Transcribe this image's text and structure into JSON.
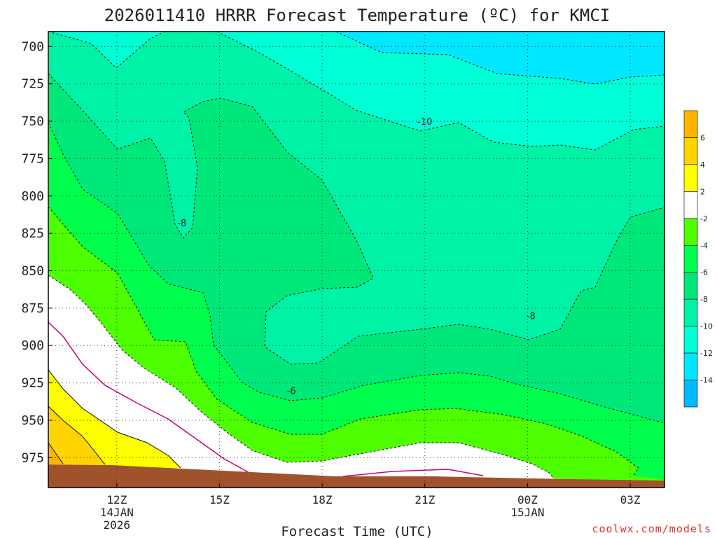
{
  "chart_data": {
    "type": "contour",
    "title": "2026011410 HRRR Forecast Temperature (ºC) for KMCI",
    "xlabel": "Forecast Time (UTC)",
    "ylabel": "",
    "y_ticks": [
      700,
      725,
      750,
      775,
      800,
      825,
      850,
      875,
      900,
      925,
      950,
      975
    ],
    "ylim": [
      690,
      995
    ],
    "y_inverted": true,
    "x_ticks": [
      {
        "hour": 12,
        "label": "12Z",
        "sub1": "14JAN",
        "sub2": "2026"
      },
      {
        "hour": 15,
        "label": "15Z",
        "sub1": "",
        "sub2": ""
      },
      {
        "hour": 18,
        "label": "18Z",
        "sub1": "",
        "sub2": ""
      },
      {
        "hour": 21,
        "label": "21Z",
        "sub1": "",
        "sub2": ""
      },
      {
        "hour": 24,
        "label": "00Z",
        "sub1": "15JAN",
        "sub2": ""
      },
      {
        "hour": 27,
        "label": "03Z",
        "sub1": "",
        "sub2": ""
      }
    ],
    "xlim": [
      10,
      28
    ],
    "grid": true,
    "contour_labels": [
      {
        "value": "-10",
        "hour": 21.0,
        "p": 750
      },
      {
        "value": "-8",
        "hour": 13.9,
        "p": 818
      },
      {
        "value": "-8",
        "hour": 24.1,
        "p": 880
      },
      {
        "value": "-6",
        "hour": 17.1,
        "p": 930
      }
    ],
    "colorbar": {
      "labels": [
        "6",
        "4",
        "2",
        "-2",
        "-4",
        "-6",
        "-8",
        "-10",
        "-12",
        "-14"
      ],
      "colors": [
        "#ffb400",
        "#ffd400",
        "#ffff00",
        "#ffffff",
        "#4dff00",
        "#00ff4c",
        "#00e87a",
        "#00f2a6",
        "#00ffd4",
        "#00e8ff",
        "#00bbff"
      ]
    },
    "surface_color": "#a0522d"
  },
  "credit": "coolwx.com/models"
}
